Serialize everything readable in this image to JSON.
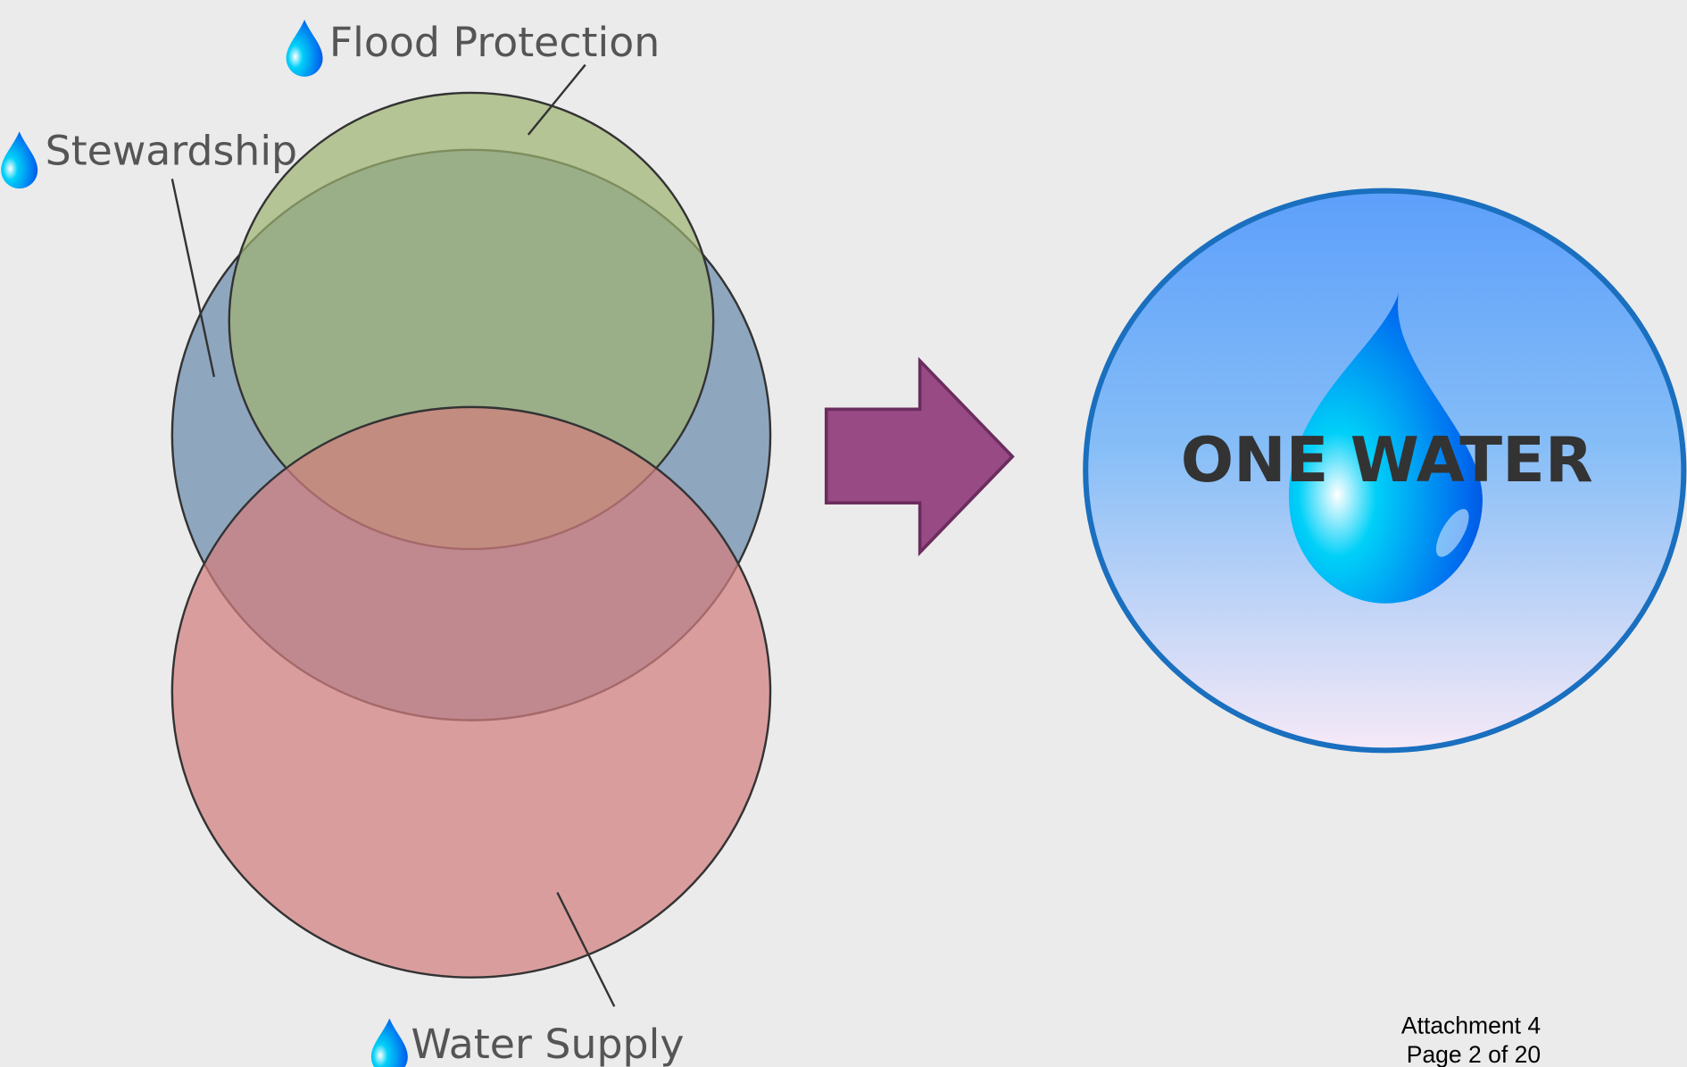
{
  "diagram": {
    "circles": [
      {
        "label": "Stewardship"
      },
      {
        "label": "Flood Protection"
      },
      {
        "label": "Water Supply"
      }
    ],
    "result": "ONE WATER"
  },
  "footer": {
    "attachment": "Attachment 4",
    "page": "Page 2 of 20"
  }
}
